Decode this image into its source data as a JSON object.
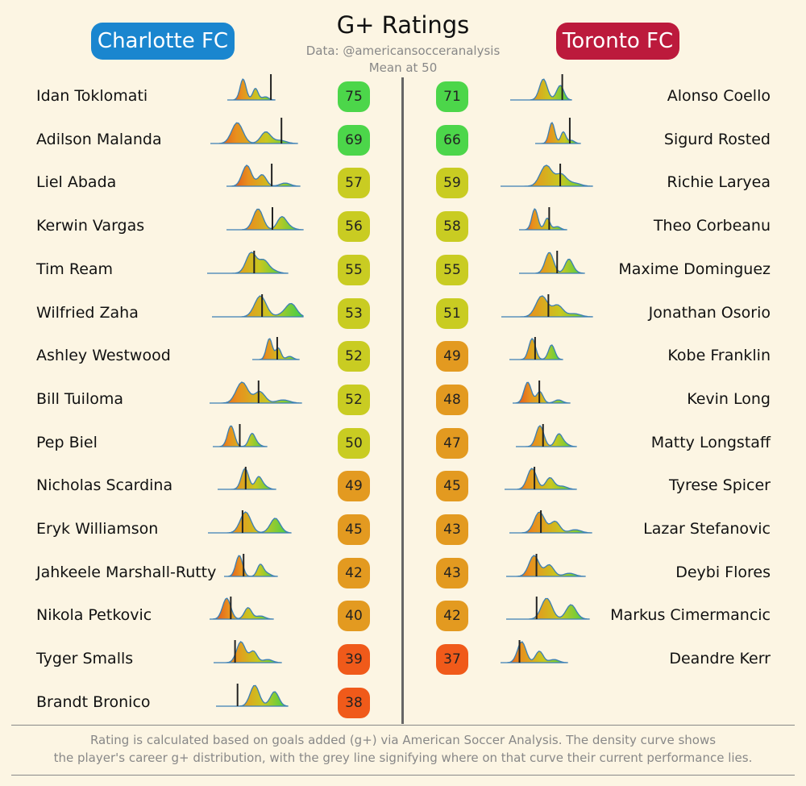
{
  "header": {
    "title": "G+ Ratings",
    "source": "Data: @americansocceranalysis",
    "mean_note": "Mean at 50"
  },
  "teams": {
    "home": {
      "name": "Charlotte FC",
      "color": "#1a86cf"
    },
    "away": {
      "name": "Toronto FC",
      "color": "#bc1a3c"
    }
  },
  "colors": {
    "rating_high": "#4cd64a",
    "rating_mid": "#c9cc22",
    "rating_low_mid": "#e39a20",
    "rating_low": "#f05a1a",
    "curve_stroke": "#3b7fb5",
    "marker_line": "#222222"
  },
  "chart_data": {
    "type": "table",
    "mean": 50,
    "columns": [
      "player",
      "density_curve",
      "g_plus_rating"
    ],
    "home_players": [
      {
        "name": "Idan Toklomati",
        "rating": 75
      },
      {
        "name": "Adilson Malanda",
        "rating": 69
      },
      {
        "name": "Liel Abada",
        "rating": 57
      },
      {
        "name": "Kerwin Vargas",
        "rating": 56
      },
      {
        "name": "Tim Ream",
        "rating": 55
      },
      {
        "name": "Wilfried Zaha",
        "rating": 53
      },
      {
        "name": "Ashley Westwood",
        "rating": 52
      },
      {
        "name": "Bill Tuiloma",
        "rating": 52
      },
      {
        "name": "Pep Biel",
        "rating": 50
      },
      {
        "name": "Nicholas Scardina",
        "rating": 49
      },
      {
        "name": "Eryk Williamson",
        "rating": 45
      },
      {
        "name": "Jahkeele Marshall-Rutty",
        "rating": 42
      },
      {
        "name": "Nikola Petkovic",
        "rating": 40
      },
      {
        "name": "Tyger Smalls",
        "rating": 39
      },
      {
        "name": "Brandt Bronico",
        "rating": 38
      }
    ],
    "away_players": [
      {
        "name": "Alonso Coello",
        "rating": 71
      },
      {
        "name": "Sigurd Rosted",
        "rating": 66
      },
      {
        "name": "Richie Laryea",
        "rating": 59
      },
      {
        "name": "Theo Corbeanu",
        "rating": 58
      },
      {
        "name": "Maxime Dominguez",
        "rating": 55
      },
      {
        "name": "Jonathan Osorio",
        "rating": 51
      },
      {
        "name": "Kobe Franklin",
        "rating": 49
      },
      {
        "name": "Kevin Long",
        "rating": 48
      },
      {
        "name": "Matty Longstaff",
        "rating": 47
      },
      {
        "name": "Tyrese Spicer",
        "rating": 45
      },
      {
        "name": "Lazar Stefanovic",
        "rating": 43
      },
      {
        "name": "Deybi Flores",
        "rating": 43
      },
      {
        "name": "Markus Cimermancic",
        "rating": 42
      },
      {
        "name": "Deandre Kerr",
        "rating": 37
      }
    ]
  },
  "footer": {
    "line1": "Rating is calculated based on goals added (g+) via American Soccer Analysis. The density curve shows",
    "line2": "the player's career g+ distribution, with the grey line signifying where on that curve their current performance lies."
  }
}
